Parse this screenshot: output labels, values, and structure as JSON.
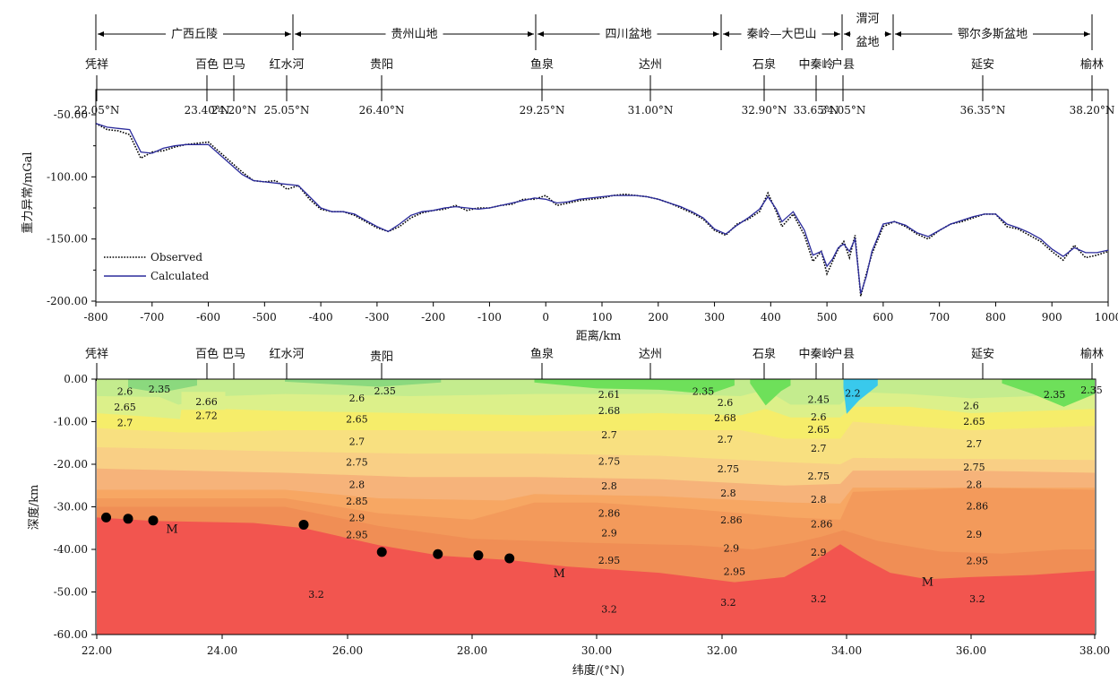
{
  "regions": [
    {
      "name": "广西丘陵",
      "from": 22.0,
      "to": 25.05
    },
    {
      "name": "贵州山地",
      "from": 25.05,
      "to": 29.0
    },
    {
      "name": "四川盆地",
      "from": 29.0,
      "to": 32.0
    },
    {
      "name": "秦岭—大巴山",
      "from": 32.0,
      "to": 33.95
    },
    {
      "name": "渭河",
      "name2": "盆地",
      "from": 33.95,
      "to": 34.5
    },
    {
      "name": "鄂尔多斯盆地",
      "from": 34.5,
      "to": 38.0
    }
  ],
  "places": [
    {
      "name": "凭祥",
      "lat": 22.05,
      "lat_label": "22.05°N"
    },
    {
      "name": "百色",
      "lat": 23.4,
      "lat_label": "23.40°N"
    },
    {
      "name": "巴马",
      "lat": 24.2,
      "lat_label": "24.20°N"
    },
    {
      "name": "红水河",
      "lat": 25.05,
      "lat_label": "25.05°N"
    },
    {
      "name": "贵阳",
      "lat": 26.4,
      "lat_label": "26.40°N"
    },
    {
      "name": "鱼泉",
      "lat": 29.25,
      "lat_label": "29.25°N"
    },
    {
      "name": "达州",
      "lat": 31.0,
      "lat_label": "31.00°N"
    },
    {
      "name": "石泉",
      "lat": 32.9,
      "lat_label": "32.90°N"
    },
    {
      "name": "中秦岭",
      "lat": 33.65,
      "lat_label": "33.65°N"
    },
    {
      "name": "户县",
      "lat": 34.05,
      "lat_label": "34.05°N"
    },
    {
      "name": "延安",
      "lat": 36.35,
      "lat_label": "36.35°N"
    },
    {
      "name": "榆林",
      "lat": 38.2,
      "lat_label": "38.20°N"
    }
  ],
  "chart_data": [
    {
      "type": "line",
      "title": "",
      "xlabel": "距离/km",
      "ylabel": "重力异常/mGal",
      "xlim": [
        -800,
        1000
      ],
      "ylim": [
        -200,
        -40
      ],
      "xticks": [
        -800,
        -700,
        -600,
        -500,
        -400,
        -300,
        -200,
        -100,
        0,
        100,
        200,
        300,
        400,
        500,
        600,
        700,
        800,
        900,
        1000
      ],
      "yticks": [
        -50,
        -100,
        -150,
        -200
      ],
      "ytick_labels": [
        "-50.00",
        "-100.00",
        "-150.00",
        "-200.00"
      ],
      "legend_position": "bottom-left",
      "series": [
        {
          "name": "Observed",
          "style": "dotted",
          "color": "#000000",
          "x": [
            -800,
            -780,
            -760,
            -740,
            -720,
            -700,
            -680,
            -660,
            -640,
            -620,
            -600,
            -580,
            -560,
            -540,
            -520,
            -500,
            -480,
            -460,
            -440,
            -420,
            -400,
            -380,
            -360,
            -340,
            -320,
            -300,
            -280,
            -260,
            -240,
            -220,
            -200,
            -180,
            -160,
            -140,
            -120,
            -100,
            -80,
            -60,
            -40,
            -20,
            0,
            20,
            40,
            60,
            80,
            100,
            120,
            140,
            160,
            180,
            200,
            220,
            240,
            260,
            280,
            300,
            320,
            340,
            360,
            380,
            395,
            410,
            420,
            440,
            460,
            475,
            490,
            500,
            510,
            520,
            530,
            540,
            550,
            560,
            570,
            580,
            600,
            620,
            640,
            660,
            680,
            700,
            720,
            740,
            760,
            780,
            800,
            820,
            840,
            860,
            880,
            900,
            920,
            940,
            960,
            980,
            1000
          ],
          "y": [
            -57,
            -62,
            -63,
            -66,
            -85,
            -80,
            -79,
            -76,
            -74,
            -73,
            -72,
            -80,
            -88,
            -96,
            -103,
            -104,
            -103,
            -110,
            -107,
            -118,
            -126,
            -128,
            -128,
            -131,
            -136,
            -141,
            -144,
            -140,
            -133,
            -129,
            -127,
            -126,
            -123,
            -127,
            -125,
            -125,
            -123,
            -122,
            -118,
            -118,
            -115,
            -123,
            -121,
            -119,
            -118,
            -117,
            -115,
            -114,
            -115,
            -116,
            -118,
            -121,
            -125,
            -129,
            -134,
            -143,
            -147,
            -138,
            -134,
            -128,
            -113,
            -128,
            -140,
            -130,
            -147,
            -168,
            -160,
            -178,
            -168,
            -158,
            -152,
            -165,
            -147,
            -196,
            -178,
            -162,
            -140,
            -136,
            -140,
            -146,
            -150,
            -143,
            -138,
            -136,
            -133,
            -130,
            -130,
            -140,
            -142,
            -147,
            -152,
            -160,
            -167,
            -155,
            -165,
            -163,
            -160
          ]
        },
        {
          "name": "Calculated",
          "style": "solid",
          "color": "#2b2b9c",
          "x": [
            -800,
            -780,
            -760,
            -740,
            -720,
            -700,
            -680,
            -660,
            -640,
            -620,
            -600,
            -580,
            -560,
            -540,
            -520,
            -500,
            -480,
            -460,
            -440,
            -420,
            -400,
            -380,
            -360,
            -340,
            -320,
            -300,
            -280,
            -260,
            -240,
            -220,
            -200,
            -180,
            -160,
            -140,
            -120,
            -100,
            -80,
            -60,
            -40,
            -20,
            0,
            20,
            40,
            60,
            80,
            100,
            120,
            140,
            160,
            180,
            200,
            220,
            240,
            260,
            280,
            300,
            320,
            340,
            360,
            380,
            395,
            410,
            420,
            440,
            460,
            475,
            490,
            500,
            510,
            520,
            530,
            540,
            550,
            560,
            570,
            580,
            600,
            620,
            640,
            660,
            680,
            700,
            720,
            740,
            760,
            780,
            800,
            820,
            840,
            860,
            880,
            900,
            920,
            940,
            960,
            980,
            1000
          ],
          "y": [
            -57,
            -60,
            -61,
            -62,
            -80,
            -81,
            -77,
            -75,
            -74,
            -74,
            -74,
            -82,
            -90,
            -98,
            -103,
            -104,
            -105,
            -106,
            -107,
            -116,
            -125,
            -128,
            -128,
            -130,
            -135,
            -140,
            -144,
            -138,
            -131,
            -128,
            -127,
            -125,
            -124,
            -125,
            -126,
            -125,
            -123,
            -121,
            -119,
            -117,
            -118,
            -121,
            -120,
            -118,
            -117,
            -116,
            -115,
            -115,
            -115,
            -116,
            -118,
            -121,
            -124,
            -128,
            -133,
            -142,
            -146,
            -139,
            -133,
            -126,
            -116,
            -126,
            -136,
            -128,
            -143,
            -163,
            -160,
            -172,
            -166,
            -157,
            -154,
            -160,
            -150,
            -194,
            -180,
            -160,
            -138,
            -136,
            -139,
            -145,
            -148,
            -143,
            -138,
            -135,
            -132,
            -130,
            -130,
            -138,
            -141,
            -145,
            -150,
            -158,
            -164,
            -157,
            -161,
            -161,
            -159
          ]
        }
      ]
    },
    {
      "type": "heatmap",
      "title": "",
      "xlabel": "纬度/(°N)",
      "ylabel": "深度/km",
      "xlim": [
        22,
        38
      ],
      "ylim": [
        -60,
        0
      ],
      "xticks": [
        22,
        24,
        26,
        28,
        30,
        32,
        34,
        36,
        38
      ],
      "xtick_labels": [
        "22.00",
        "24.00",
        "26.00",
        "28.00",
        "30.00",
        "32.00",
        "34.00",
        "36.00",
        "38.00"
      ],
      "yticks": [
        0,
        -10,
        -20,
        -30,
        -40,
        -50,
        -60
      ],
      "ytick_labels": [
        "0.00",
        "-10.00",
        "-20.00",
        "-30.00",
        "-40.00",
        "-50.00",
        "-60.00"
      ],
      "density_labels": [
        {
          "text": "2.6",
          "x": 22.45,
          "y": -2.8
        },
        {
          "text": "2.35",
          "x": 23.0,
          "y": -2.3
        },
        {
          "text": "2.65",
          "x": 22.45,
          "y": -6.5
        },
        {
          "text": "2.7",
          "x": 22.45,
          "y": -10.2
        },
        {
          "text": "2.66",
          "x": 23.75,
          "y": -5.3
        },
        {
          "text": "2.72",
          "x": 23.75,
          "y": -8.5
        },
        {
          "text": "2.6",
          "x": 26.15,
          "y": -4.4
        },
        {
          "text": "2.35",
          "x": 26.6,
          "y": -2.7
        },
        {
          "text": "2.65",
          "x": 26.15,
          "y": -9.4
        },
        {
          "text": "2.7",
          "x": 26.15,
          "y": -14.6
        },
        {
          "text": "2.75",
          "x": 26.15,
          "y": -19.5
        },
        {
          "text": "2.8",
          "x": 26.15,
          "y": -24.7
        },
        {
          "text": "2.85",
          "x": 26.15,
          "y": -28.6
        },
        {
          "text": "2.9",
          "x": 26.15,
          "y": -32.5
        },
        {
          "text": "2.95",
          "x": 26.15,
          "y": -36.5
        },
        {
          "text": "3.2",
          "x": 25.5,
          "y": -50.5
        },
        {
          "text": "2.61",
          "x": 30.2,
          "y": -3.6
        },
        {
          "text": "2.35",
          "x": 31.7,
          "y": -2.8
        },
        {
          "text": "2.68",
          "x": 30.2,
          "y": -7.4
        },
        {
          "text": "2.7",
          "x": 30.2,
          "y": -13.1
        },
        {
          "text": "2.75",
          "x": 30.2,
          "y": -19.3
        },
        {
          "text": "2.8",
          "x": 30.2,
          "y": -25.0
        },
        {
          "text": "2.86",
          "x": 30.2,
          "y": -31.5
        },
        {
          "text": "2.9",
          "x": 30.2,
          "y": -36.1
        },
        {
          "text": "2.95",
          "x": 30.2,
          "y": -42.5
        },
        {
          "text": "3.2",
          "x": 30.2,
          "y": -54.0
        },
        {
          "text": "2.6",
          "x": 32.05,
          "y": -5.5
        },
        {
          "text": "2.68",
          "x": 32.05,
          "y": -9.0
        },
        {
          "text": "2.7",
          "x": 32.05,
          "y": -14.1
        },
        {
          "text": "2.75",
          "x": 32.1,
          "y": -21.0
        },
        {
          "text": "2.8",
          "x": 32.1,
          "y": -26.7
        },
        {
          "text": "2.86",
          "x": 32.15,
          "y": -33.1
        },
        {
          "text": "2.9",
          "x": 32.15,
          "y": -39.7
        },
        {
          "text": "2.95",
          "x": 32.2,
          "y": -45.2
        },
        {
          "text": "3.2",
          "x": 32.1,
          "y": -52.4
        },
        {
          "text": "2.45",
          "x": 33.55,
          "y": -4.7
        },
        {
          "text": "2.6",
          "x": 33.55,
          "y": -8.8
        },
        {
          "text": "2.65",
          "x": 33.55,
          "y": -11.8
        },
        {
          "text": "2.7",
          "x": 33.55,
          "y": -16.2
        },
        {
          "text": "2.75",
          "x": 33.55,
          "y": -22.7
        },
        {
          "text": "2.8",
          "x": 33.55,
          "y": -28.2
        },
        {
          "text": "2.86",
          "x": 33.6,
          "y": -34.0
        },
        {
          "text": "2.9",
          "x": 33.55,
          "y": -40.6
        },
        {
          "text": "3.2",
          "x": 33.55,
          "y": -51.6
        },
        {
          "text": "2.2",
          "x": 34.1,
          "y": -3.3
        },
        {
          "text": "2.6",
          "x": 36.0,
          "y": -6.2
        },
        {
          "text": "2.65",
          "x": 36.05,
          "y": -9.9
        },
        {
          "text": "2.7",
          "x": 36.05,
          "y": -15.2
        },
        {
          "text": "2.75",
          "x": 36.05,
          "y": -20.6
        },
        {
          "text": "2.8",
          "x": 36.05,
          "y": -24.7
        },
        {
          "text": "2.86",
          "x": 36.1,
          "y": -29.8
        },
        {
          "text": "2.9",
          "x": 36.05,
          "y": -36.4
        },
        {
          "text": "2.95",
          "x": 36.1,
          "y": -42.6
        },
        {
          "text": "3.2",
          "x": 36.1,
          "y": -51.6
        },
        {
          "text": "2.35",
          "x": 37.35,
          "y": -3.6
        },
        {
          "text": "2.35",
          "x": 37.95,
          "y": -2.5
        }
      ],
      "moho_labels": [
        {
          "text": "M",
          "x": 23.2,
          "y": -35.0
        },
        {
          "text": "M",
          "x": 29.4,
          "y": -45.5
        },
        {
          "text": "M",
          "x": 35.3,
          "y": -47.5
        }
      ],
      "control_points": [
        {
          "x": 22.15,
          "y": -32.5
        },
        {
          "x": 22.5,
          "y": -32.8
        },
        {
          "x": 22.9,
          "y": -33.2
        },
        {
          "x": 25.3,
          "y": -34.2
        },
        {
          "x": 26.55,
          "y": -40.6
        },
        {
          "x": 27.45,
          "y": -41.1
        },
        {
          "x": 28.1,
          "y": -41.4
        },
        {
          "x": 28.6,
          "y": -42.1
        }
      ]
    }
  ],
  "legend": {
    "observed": "Observed",
    "calculated": "Calculated"
  },
  "colors": {
    "c235": "#8bd97e",
    "c26": "#c4ec8e",
    "c265": "#dcf08a",
    "c27": "#f6ed6a",
    "c275": "#f8e080",
    "c28": "#f9cf85",
    "c285": "#f6b37a",
    "c286": "#f7a763",
    "c29": "#f39a5b",
    "c295": "#f08e55",
    "c32": "#f2554f",
    "c22": "#39c9ec",
    "green": "#6ee05a"
  }
}
